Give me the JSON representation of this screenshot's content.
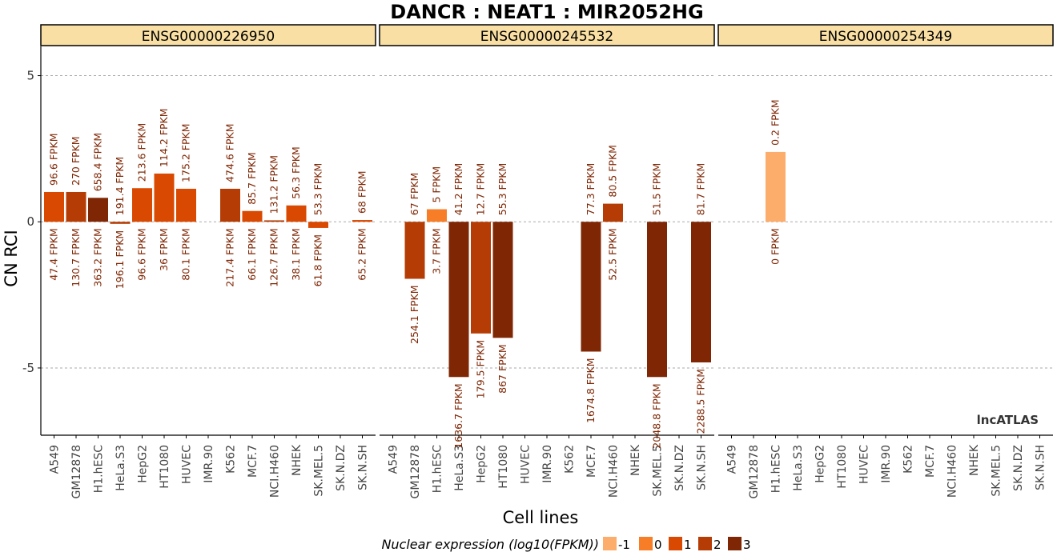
{
  "title": "DANCR : NEAT1 : MIR2052HG",
  "watermark": "lncATLAS",
  "colors": {
    "level_-1": "#fdad6b",
    "level_0": "#f77d27",
    "level_1": "#d94901",
    "level_2": "#b53d05",
    "level_3": "#7f2705",
    "label_text": "#7f2705",
    "strip_fill": "#f9dfa3"
  },
  "chart_data": {
    "type": "bar",
    "xlabel": "Cell lines",
    "ylabel": "CN RCI",
    "ylim": [
      -7.3,
      6
    ],
    "yticks": [
      5,
      0,
      -5
    ],
    "grid": true,
    "legend": {
      "title": "Nuclear expression (log10(FPKM))",
      "placement": "bottom",
      "levels": [
        "-1",
        "0",
        "1",
        "2",
        "3"
      ]
    },
    "categories": [
      "A549",
      "GM12878",
      "H1.hESC",
      "HeLa.S3",
      "HepG2",
      "HT1080",
      "HUVEC",
      "IMR.90",
      "K562",
      "MCF.7",
      "NCI.H460",
      "NHEK",
      "SK.MEL.5",
      "SK.N.DZ",
      "SK.N.SH"
    ],
    "panels": [
      {
        "name": "ENSG00000226950",
        "bars": [
          {
            "value": 1.02,
            "level": "1",
            "cyto_label": "96.6 FPKM",
            "nuc_label": "47.4 FPKM"
          },
          {
            "value": 1.02,
            "level": "2",
            "cyto_label": "270 FPKM",
            "nuc_label": "130.7 FPKM"
          },
          {
            "value": 0.82,
            "level": "3",
            "cyto_label": "658.4 FPKM",
            "nuc_label": "363.2 FPKM"
          },
          {
            "value": -0.07,
            "level": "2",
            "cyto_label": "191.4 FPKM",
            "nuc_label": "196.1 FPKM"
          },
          {
            "value": 1.15,
            "level": "1",
            "cyto_label": "213.6 FPKM",
            "nuc_label": "96.6 FPKM"
          },
          {
            "value": 1.65,
            "level": "1",
            "cyto_label": "114.2 FPKM",
            "nuc_label": "36 FPKM"
          },
          {
            "value": 1.13,
            "level": "1",
            "cyto_label": "175.2 FPKM",
            "nuc_label": "80.1 FPKM"
          },
          null,
          {
            "value": 1.13,
            "level": "2",
            "cyto_label": "474.6 FPKM",
            "nuc_label": "217.4 FPKM"
          },
          {
            "value": 0.37,
            "level": "1",
            "cyto_label": "85.7 FPKM",
            "nuc_label": "66.1 FPKM"
          },
          {
            "value": 0.05,
            "level": "2",
            "cyto_label": "131.2 FPKM",
            "nuc_label": "126.7 FPKM"
          },
          {
            "value": 0.56,
            "level": "1",
            "cyto_label": "56.3 FPKM",
            "nuc_label": "38.1 FPKM"
          },
          {
            "value": -0.21,
            "level": "1",
            "cyto_label": "53.3 FPKM",
            "nuc_label": "61.8 FPKM"
          },
          null,
          {
            "value": 0.06,
            "level": "1",
            "cyto_label": "68 FPKM",
            "nuc_label": "65.2 FPKM"
          }
        ]
      },
      {
        "name": "ENSG00000245532",
        "bars": [
          null,
          {
            "value": -1.95,
            "level": "2",
            "cyto_label": "67 FPKM",
            "nuc_label": "254.1 FPKM"
          },
          {
            "value": 0.43,
            "level": "0",
            "cyto_label": "5 FPKM",
            "nuc_label": "3.7 FPKM"
          },
          {
            "value": -5.31,
            "level": "3",
            "cyto_label": "41.2 FPKM",
            "nuc_label": "1636.7 FPKM"
          },
          {
            "value": -3.82,
            "level": "2",
            "cyto_label": "12.7 FPKM",
            "nuc_label": "179.5 FPKM"
          },
          {
            "value": -3.97,
            "level": "3",
            "cyto_label": "55.3 FPKM",
            "nuc_label": "867 FPKM"
          },
          null,
          null,
          null,
          {
            "value": -4.44,
            "level": "3",
            "cyto_label": "77.3 FPKM",
            "nuc_label": "1674.8 FPKM"
          },
          {
            "value": 0.62,
            "level": "2",
            "cyto_label": "80.5 FPKM",
            "nuc_label": "52.5 FPKM"
          },
          null,
          {
            "value": -5.31,
            "level": "3",
            "cyto_label": "51.5 FPKM",
            "nuc_label": "2048.8 FPKM"
          },
          null,
          {
            "value": -4.81,
            "level": "3",
            "cyto_label": "81.7 FPKM",
            "nuc_label": "2288.5 FPKM"
          }
        ]
      },
      {
        "name": "ENSG00000254349",
        "bars": [
          null,
          null,
          {
            "value": 2.39,
            "level": "-1",
            "cyto_label": "0.2 FPKM",
            "nuc_label": "0 FPKM"
          },
          null,
          null,
          null,
          null,
          null,
          null,
          null,
          null,
          null,
          null,
          null,
          null
        ]
      }
    ]
  }
}
